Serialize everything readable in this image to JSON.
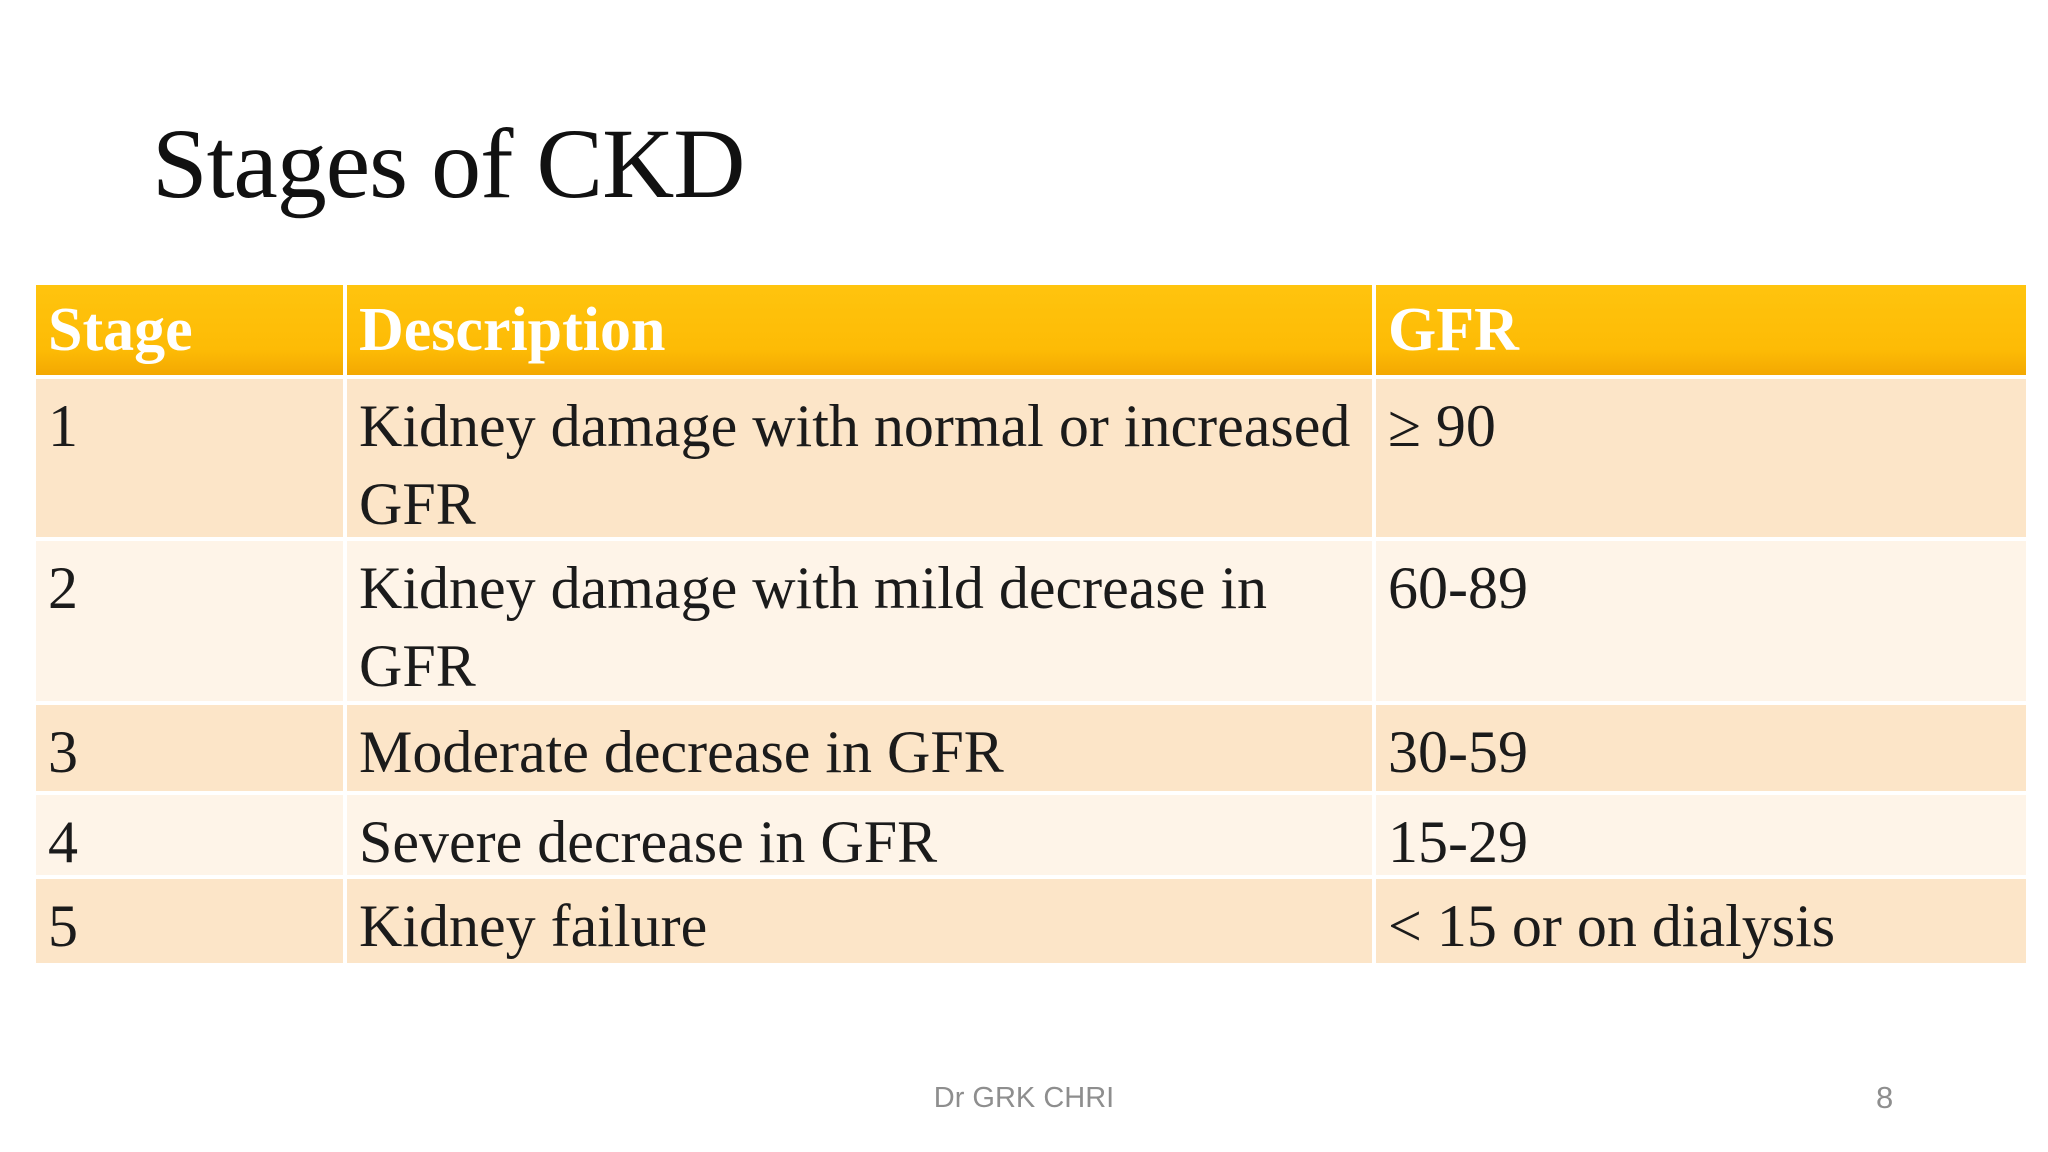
{
  "slide": {
    "title": "Stages of CKD",
    "footer": "Dr GRK CHRI",
    "page_number": "8"
  },
  "table": {
    "headers": [
      "Stage",
      "Description",
      "GFR"
    ],
    "rows": [
      [
        "1",
        "Kidney damage with normal or increased GFR",
        "≥ 90"
      ],
      [
        "2",
        "Kidney damage with mild decrease in GFR",
        "60-89"
      ],
      [
        "3",
        "Moderate decrease in GFR",
        "30-59"
      ],
      [
        "4",
        "Severe decrease in GFR",
        "15-29"
      ],
      [
        "5",
        "Kidney failure",
        "< 15 or on dialysis"
      ]
    ]
  },
  "colors": {
    "header_bg": "#FDBB05",
    "row_odd_bg": "#FCE5C8",
    "row_even_bg": "#FEF4E8",
    "header_text": "#FFFFFF",
    "body_text": "#1B1B1B",
    "footer_text": "#8E8E8E"
  }
}
